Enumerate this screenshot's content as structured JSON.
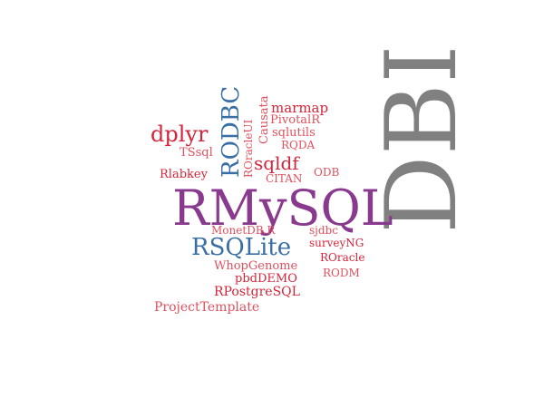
{
  "colors": {
    "grey": "#808080",
    "purple": "#8a3a8e",
    "blue": "#3a6fa6",
    "red": "#d6243a",
    "pink": "#e0505e",
    "background": "#ffffff"
  },
  "cloud": {
    "dbi": "DBI",
    "rmysql": "RMySQL",
    "rsqlite": "RSQLite",
    "rodbc": "RODBC",
    "dplyr": "dplyr",
    "sqldf": "sqldf",
    "marmap": "marmap",
    "pivotalr": "PivotalR",
    "sqlutils": "sqlutils",
    "rqda": "RQDA",
    "causata": "Causata",
    "roracleui": "ROracleUI",
    "tssql": "TSsql",
    "rlabkey": "Rlabkey",
    "citan": "CITAN",
    "odb": "ODB",
    "monetdb_r": "MonetDB.R",
    "sjdbc": "sjdbc",
    "surveyng": "surveyNG",
    "roracle": "ROracle",
    "whopgenome": "WhopGenome",
    "rodm": "RODM",
    "pbddemo": "pbdDEMO",
    "rpostgresql": "RPostgreSQL",
    "projecttemplate": "ProjectTemplate"
  }
}
